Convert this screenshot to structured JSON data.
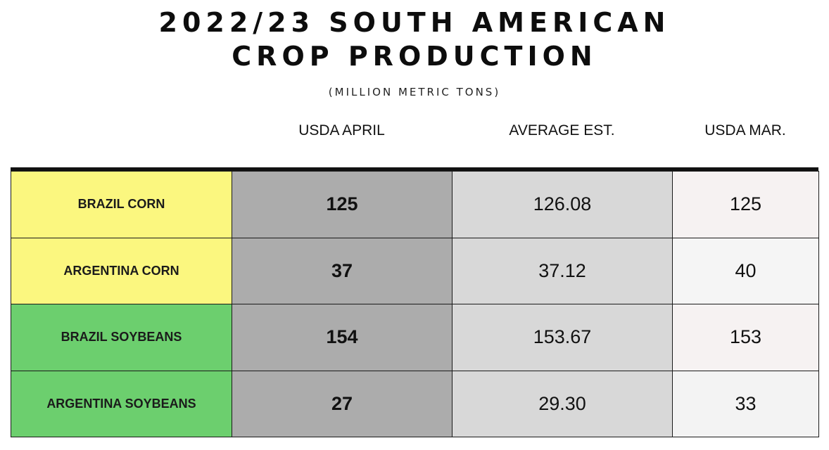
{
  "chart_data": {
    "type": "table",
    "title": "2022/23 SOUTH AMERICAN CROP PRODUCTION",
    "title_lines": [
      "2022/23 SOUTH AMERICAN",
      "CROP PRODUCTION"
    ],
    "subtitle": "(MILLION METRIC TONS)",
    "columns": [
      "USDA APRIL",
      "AVERAGE EST.",
      "USDA MAR."
    ],
    "rows": [
      {
        "label": "BRAZIL CORN",
        "values": [
          "125",
          "126.08",
          "125"
        ],
        "label_color": "#fbf77f",
        "mar_color": "#f6f2f2"
      },
      {
        "label": "ARGENTINA CORN",
        "values": [
          "37",
          "37.12",
          "40"
        ],
        "label_color": "#fbf77f",
        "mar_color": "#f5f5f5"
      },
      {
        "label": "BRAZIL SOYBEANS",
        "values": [
          "154",
          "153.67",
          "153"
        ],
        "label_color": "#6ccf6e",
        "mar_color": "#f6f2f2"
      },
      {
        "label": "ARGENTINA SOYBEANS",
        "values": [
          "27",
          "29.30",
          "33"
        ],
        "label_color": "#6ccf6e",
        "mar_color": "#f3f3f3"
      }
    ],
    "colors": {
      "corn": "#fbf77f",
      "soybeans": "#6ccf6e",
      "usda_april_fill": "#acacac",
      "average_est_fill": "#d8d8d8"
    }
  }
}
